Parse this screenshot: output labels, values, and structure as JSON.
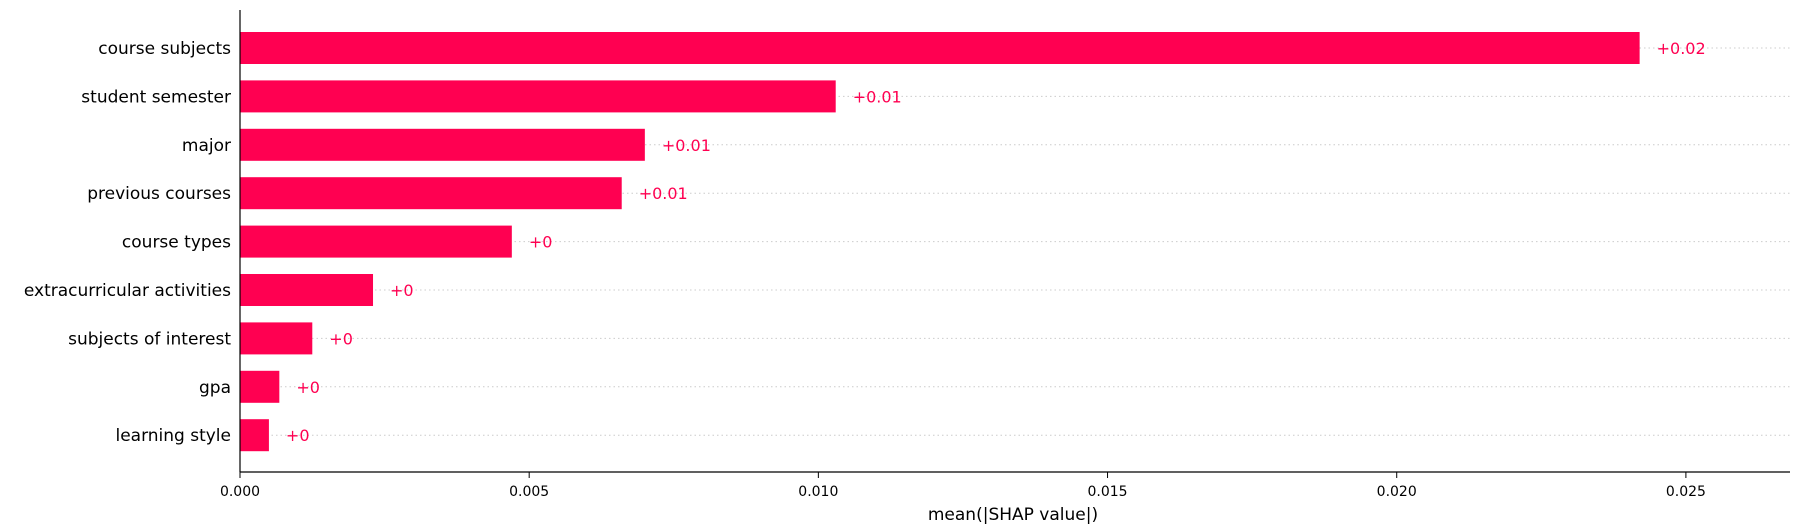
{
  "chart_data": {
    "type": "bar",
    "orientation": "horizontal",
    "categories": [
      "course subjects",
      "student semester",
      "major",
      "previous courses",
      "course types",
      "extracurricular activities",
      "subjects of interest",
      "gpa",
      "learning style"
    ],
    "values": [
      0.0242,
      0.0103,
      0.007,
      0.0066,
      0.0047,
      0.0023,
      0.00125,
      0.00068,
      0.0005
    ],
    "value_labels": [
      "+0.02",
      "+0.01",
      "+0.01",
      "+0.01",
      "+0",
      "+0",
      "+0",
      "+0",
      "+0"
    ],
    "xlabel": "mean(|SHAP value|)",
    "ylabel": "",
    "xlim": [
      0,
      0.0268
    ],
    "xticks": [
      0.0,
      0.005,
      0.01,
      0.015,
      0.02,
      0.025
    ],
    "xtick_labels": [
      "0.000",
      "0.005",
      "0.010",
      "0.015",
      "0.020",
      "0.025"
    ],
    "grid": "horizontal dotted guide per bar",
    "bar_color": "#ff0051",
    "label_color": "#ff0051"
  }
}
